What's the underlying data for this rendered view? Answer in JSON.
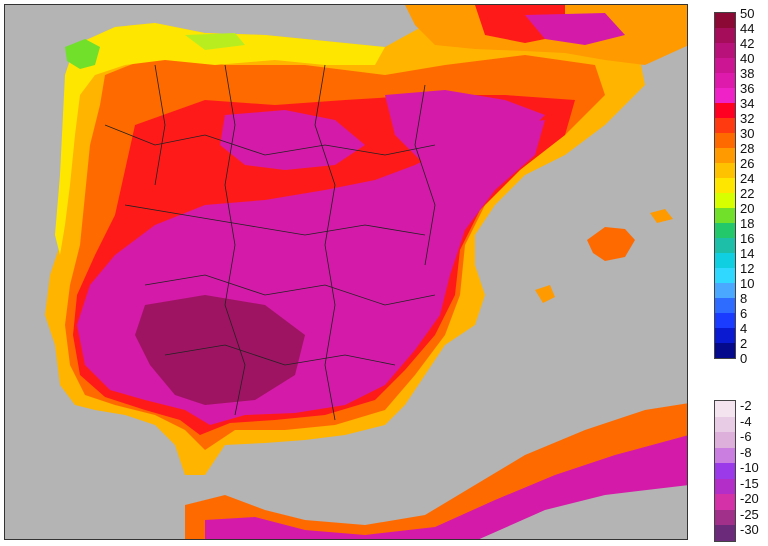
{
  "legend": {
    "upper_ticks": [
      "50",
      "44",
      "42",
      "40",
      "38",
      "36",
      "34",
      "32",
      "30",
      "28",
      "26",
      "24",
      "22",
      "20",
      "18",
      "16",
      "14",
      "12",
      "10",
      "8",
      "6",
      "4",
      "2",
      "0"
    ],
    "upper_colors": [
      "#8a0a35",
      "#a50d5a",
      "#b8117a",
      "#cc1593",
      "#de1aad",
      "#ef22c8",
      "#ff0022",
      "#ff3a10",
      "#ff6a00",
      "#ff9a00",
      "#ffc200",
      "#ffe600",
      "#d8ff00",
      "#70e02a",
      "#22c86a",
      "#1ebfa8",
      "#10cfe0",
      "#30d8ff",
      "#4aa8ff",
      "#2d6cff",
      "#1a3cff",
      "#0a1ad0",
      "#050a8c"
    ],
    "lower_ticks": [
      "-2",
      "-4",
      "-6",
      "-8",
      "-10",
      "-15",
      "-20",
      "-25",
      "-30"
    ],
    "lower_colors": [
      "#f4e4f0",
      "#e8cbe4",
      "#ddb0dc",
      "#c97ee0",
      "#9a3ae8",
      "#b32ec8",
      "#d430a8",
      "#a0308a",
      "#6b2a7a"
    ]
  },
  "map": {
    "sea_color": "#b4b4b4",
    "land_colors": {
      "hot": "#c81a96",
      "very_hot": "#9e1462",
      "warm": "#ff2a10",
      "mild": "#ff9a00",
      "cool": "#ffe600",
      "fresh": "#70e02a"
    }
  }
}
